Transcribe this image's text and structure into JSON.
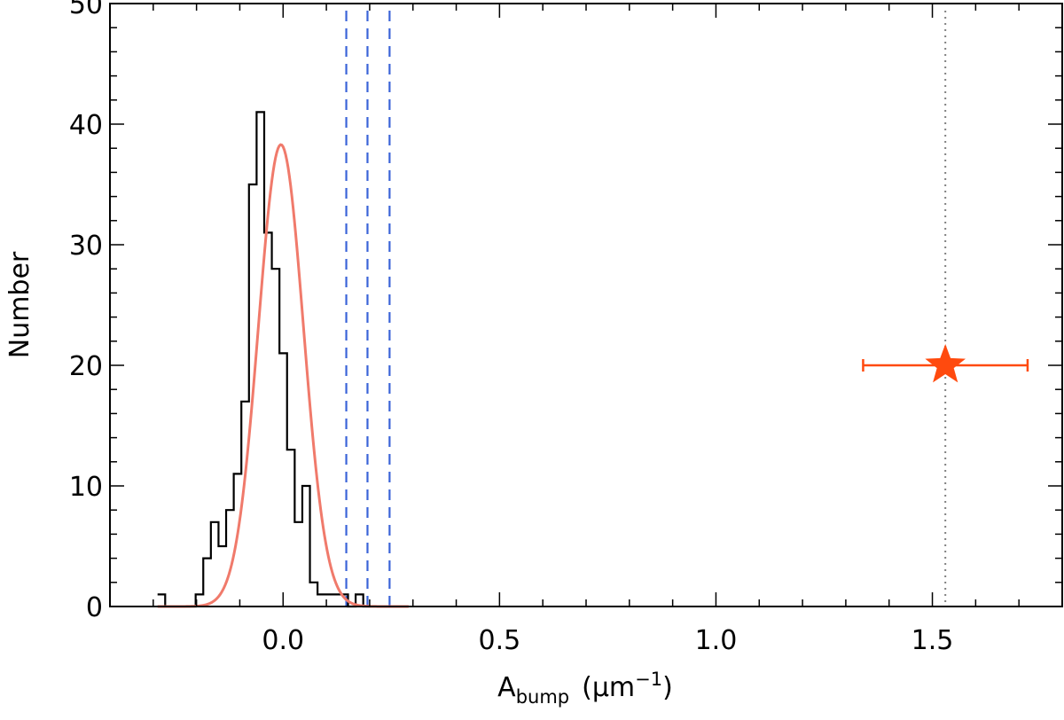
{
  "chart_data": {
    "type": "bar",
    "title": "",
    "xlabel": "A",
    "xlabel_sub": "bump",
    "xlabel_unit": "(μm",
    "xlabel_unit_sup": "−1",
    "xlabel_unit_close": ")",
    "ylabel": "Number",
    "xlim": [
      -0.4,
      1.8
    ],
    "ylim": [
      0,
      50
    ],
    "grid": false,
    "x_ticks": [
      {
        "value": 0.0,
        "label": "0.0"
      },
      {
        "value": 0.5,
        "label": "0.5"
      },
      {
        "value": 1.0,
        "label": "1.0"
      },
      {
        "value": 1.5,
        "label": "1.5"
      }
    ],
    "y_ticks": [
      {
        "value": 0,
        "label": "0"
      },
      {
        "value": 10,
        "label": "10"
      },
      {
        "value": 20,
        "label": "20"
      },
      {
        "value": 30,
        "label": "30"
      },
      {
        "value": 40,
        "label": "40"
      },
      {
        "value": 50,
        "label": "50"
      }
    ],
    "histogram": {
      "color": "#000000",
      "bin_width": 0.0176,
      "bin_edges_start": -0.29,
      "counts": [
        1,
        0,
        0,
        0,
        0,
        1,
        4,
        7,
        5,
        8,
        11,
        17,
        35,
        41,
        31,
        28,
        21,
        13,
        7,
        10,
        2,
        1,
        1,
        1,
        1,
        0,
        1,
        0
      ]
    },
    "gaussian_fit": {
      "color": "#f07a6b",
      "amplitude": 38.3,
      "mean": -0.005,
      "sigma": 0.052,
      "x_range": [
        -0.29,
        0.29
      ]
    },
    "vertical_lines": [
      {
        "x": 0.146,
        "style": "dashed",
        "color": "#3a64d8"
      },
      {
        "x": 0.195,
        "style": "dashed",
        "color": "#3a64d8"
      },
      {
        "x": 0.246,
        "style": "dashed",
        "color": "#3a64d8"
      },
      {
        "x": 1.53,
        "style": "dotted",
        "color": "#808080"
      }
    ],
    "marker": {
      "x": 1.53,
      "y": 20,
      "x_err_low": 0.19,
      "x_err_high": 0.19,
      "shape": "star",
      "color": "#ff4a0e"
    }
  }
}
